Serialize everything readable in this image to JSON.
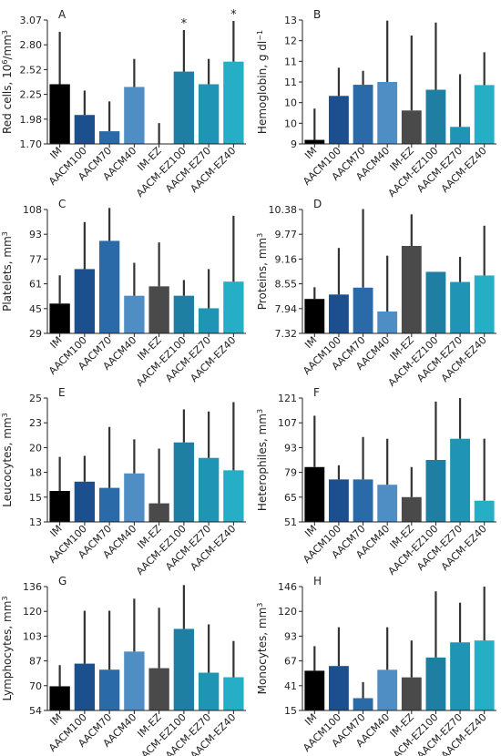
{
  "chart_data": [
    {
      "panel": "A",
      "type": "bar",
      "ylabel": "Red cells, 10",
      "ylabel_sup": "6",
      "ylabel_post": "/mm",
      "ylabel_sup2": "3",
      "ylim": [
        1.7,
        3.07
      ],
      "yticks": [
        "1.70",
        "1.98",
        "2.25",
        "2.52",
        "2.80",
        "3.07"
      ],
      "categories": [
        "IM",
        "AACM100",
        "AACM70",
        "AACM40",
        "IM-EZ",
        "AACM-EZ100",
        "AACM-EZ70",
        "AACM-EZ40"
      ],
      "values": [
        2.36,
        2.02,
        1.84,
        2.33,
        1.7,
        2.5,
        2.36,
        2.61
      ],
      "errors": [
        0.58,
        0.27,
        0.33,
        0.31,
        0.23,
        0.46,
        0.28,
        0.45
      ],
      "annotations": [
        {
          "category": "AACM-EZ100",
          "text": "*"
        },
        {
          "category": "AACM-EZ40",
          "text": "*"
        }
      ]
    },
    {
      "panel": "B",
      "type": "bar",
      "ylabel": "Hemoglobin, g dl",
      "ylabel_sup": "−1",
      "ylim": [
        9,
        13
      ],
      "yticks": [
        "9",
        "10",
        "10",
        "11",
        "11",
        "12",
        "13"
      ],
      "categories": [
        "IM",
        "AACM100",
        "AACM70",
        "AACM40",
        "IM-EZ",
        "AACM-EZ100",
        "AACM-EZ70",
        "AACM-EZ40"
      ],
      "values": [
        9.13,
        10.55,
        10.91,
        11.0,
        10.08,
        10.75,
        9.55,
        10.9
      ],
      "errors": [
        1.01,
        0.91,
        0.45,
        1.98,
        2.42,
        2.17,
        1.7,
        1.06
      ],
      "annotations": []
    },
    {
      "panel": "C",
      "type": "bar",
      "ylabel": "Platelets, mm",
      "ylabel_sup": "3",
      "ylim": [
        29,
        108
      ],
      "yticks": [
        "29",
        "45",
        "61",
        "77",
        "93",
        "108"
      ],
      "categories": [
        "IM",
        "AACM100",
        "AACM70",
        "AACM40",
        "IM-EZ",
        "AACM-EZ100",
        "AACM-EZ70",
        "AACM-EZ40"
      ],
      "values": [
        48,
        70,
        88,
        53,
        59,
        53,
        45,
        62
      ],
      "errors": [
        18,
        30,
        21,
        21,
        28,
        10,
        25,
        42
      ],
      "annotations": []
    },
    {
      "panel": "D",
      "type": "bar",
      "ylabel": "Proteins, mm",
      "ylabel_sup": "3",
      "ylim": [
        7.32,
        10.38
      ],
      "yticks": [
        "7.32",
        "7.94",
        "8.55",
        "9.16",
        "9.77",
        "10.38"
      ],
      "categories": [
        "IM",
        "AACM100",
        "AACM70",
        "AACM40",
        "IM-EZ",
        "AACM-EZ100",
        "AACM-EZ70",
        "AACM-EZ40"
      ],
      "values": [
        8.17,
        8.28,
        8.45,
        7.86,
        9.48,
        8.84,
        8.59,
        8.75
      ],
      "errors": [
        0.29,
        1.15,
        1.94,
        1.38,
        0.78,
        0.0,
        0.62,
        1.23
      ],
      "annotations": []
    },
    {
      "panel": "E",
      "type": "bar",
      "ylabel": "Leucocytes, mm",
      "ylabel_sup": "3",
      "ylim": [
        13,
        25
      ],
      "yticks": [
        "13",
        "15",
        "18",
        "20",
        "23",
        "25"
      ],
      "categories": [
        "IM",
        "AACM100",
        "AACM70",
        "AACM40",
        "IM-EZ",
        "AACM-EZ100",
        "AACM-EZ70",
        "AACM-EZ40"
      ],
      "values": [
        16.0,
        16.9,
        16.3,
        17.7,
        14.8,
        20.7,
        19.2,
        18.0
      ],
      "errors": [
        3.3,
        2.5,
        5.9,
        3.3,
        5.3,
        3.2,
        4.5,
        6.6
      ],
      "annotations": []
    },
    {
      "panel": "F",
      "type": "bar",
      "ylabel": "Heterophiles, mm",
      "ylabel_sup": "3",
      "ylim": [
        51,
        121
      ],
      "yticks": [
        "51",
        "65",
        "79",
        "93",
        "107",
        "121"
      ],
      "categories": [
        "IM",
        "AACM100",
        "AACM70",
        "AACM40",
        "IM-EZ",
        "AACM-EZ100",
        "AACM-EZ70",
        "AACM-EZ40"
      ],
      "values": [
        82,
        75,
        75,
        72,
        65,
        86,
        98,
        63
      ],
      "errors": [
        29,
        8,
        24,
        26,
        17,
        33,
        23,
        35
      ],
      "annotations": []
    },
    {
      "panel": "G",
      "type": "bar",
      "ylabel": "Lymphocytes, mm",
      "ylabel_sup": "3",
      "ylim": [
        54,
        136
      ],
      "yticks": [
        "54",
        "70",
        "87",
        "103",
        "120",
        "136"
      ],
      "categories": [
        "IM",
        "AACM100",
        "AACM70",
        "AACM40",
        "IM-EZ",
        "AACM-EZ100",
        "AACM-EZ70",
        "AACM-EZ40"
      ],
      "values": [
        70,
        85,
        81,
        93,
        82,
        108,
        79,
        76
      ],
      "errors": [
        14,
        35,
        39,
        35,
        40,
        29,
        32,
        24
      ],
      "annotations": []
    },
    {
      "panel": "H",
      "type": "bar",
      "ylabel": "Monocytes, mm",
      "ylabel_sup": "3",
      "ylim": [
        15,
        146
      ],
      "yticks": [
        "15",
        "41",
        "67",
        "93",
        "120",
        "146"
      ],
      "categories": [
        "IM",
        "AACM100",
        "AACM70",
        "AACM40",
        "IM-EZ",
        "AACM-EZ100",
        "AACM-EZ70",
        "AACM-EZ40"
      ],
      "values": [
        57,
        62,
        28,
        58,
        50,
        71,
        87,
        89
      ],
      "errors": [
        26,
        41,
        17,
        45,
        39,
        70,
        42,
        57
      ],
      "annotations": []
    }
  ],
  "colors": [
    "#000000",
    "#1c4f8e",
    "#2b6aa8",
    "#4f8ec4",
    "#4a4a4a",
    "#1f7fa3",
    "#1f94b4",
    "#26aec6"
  ],
  "error_color": "#333333"
}
